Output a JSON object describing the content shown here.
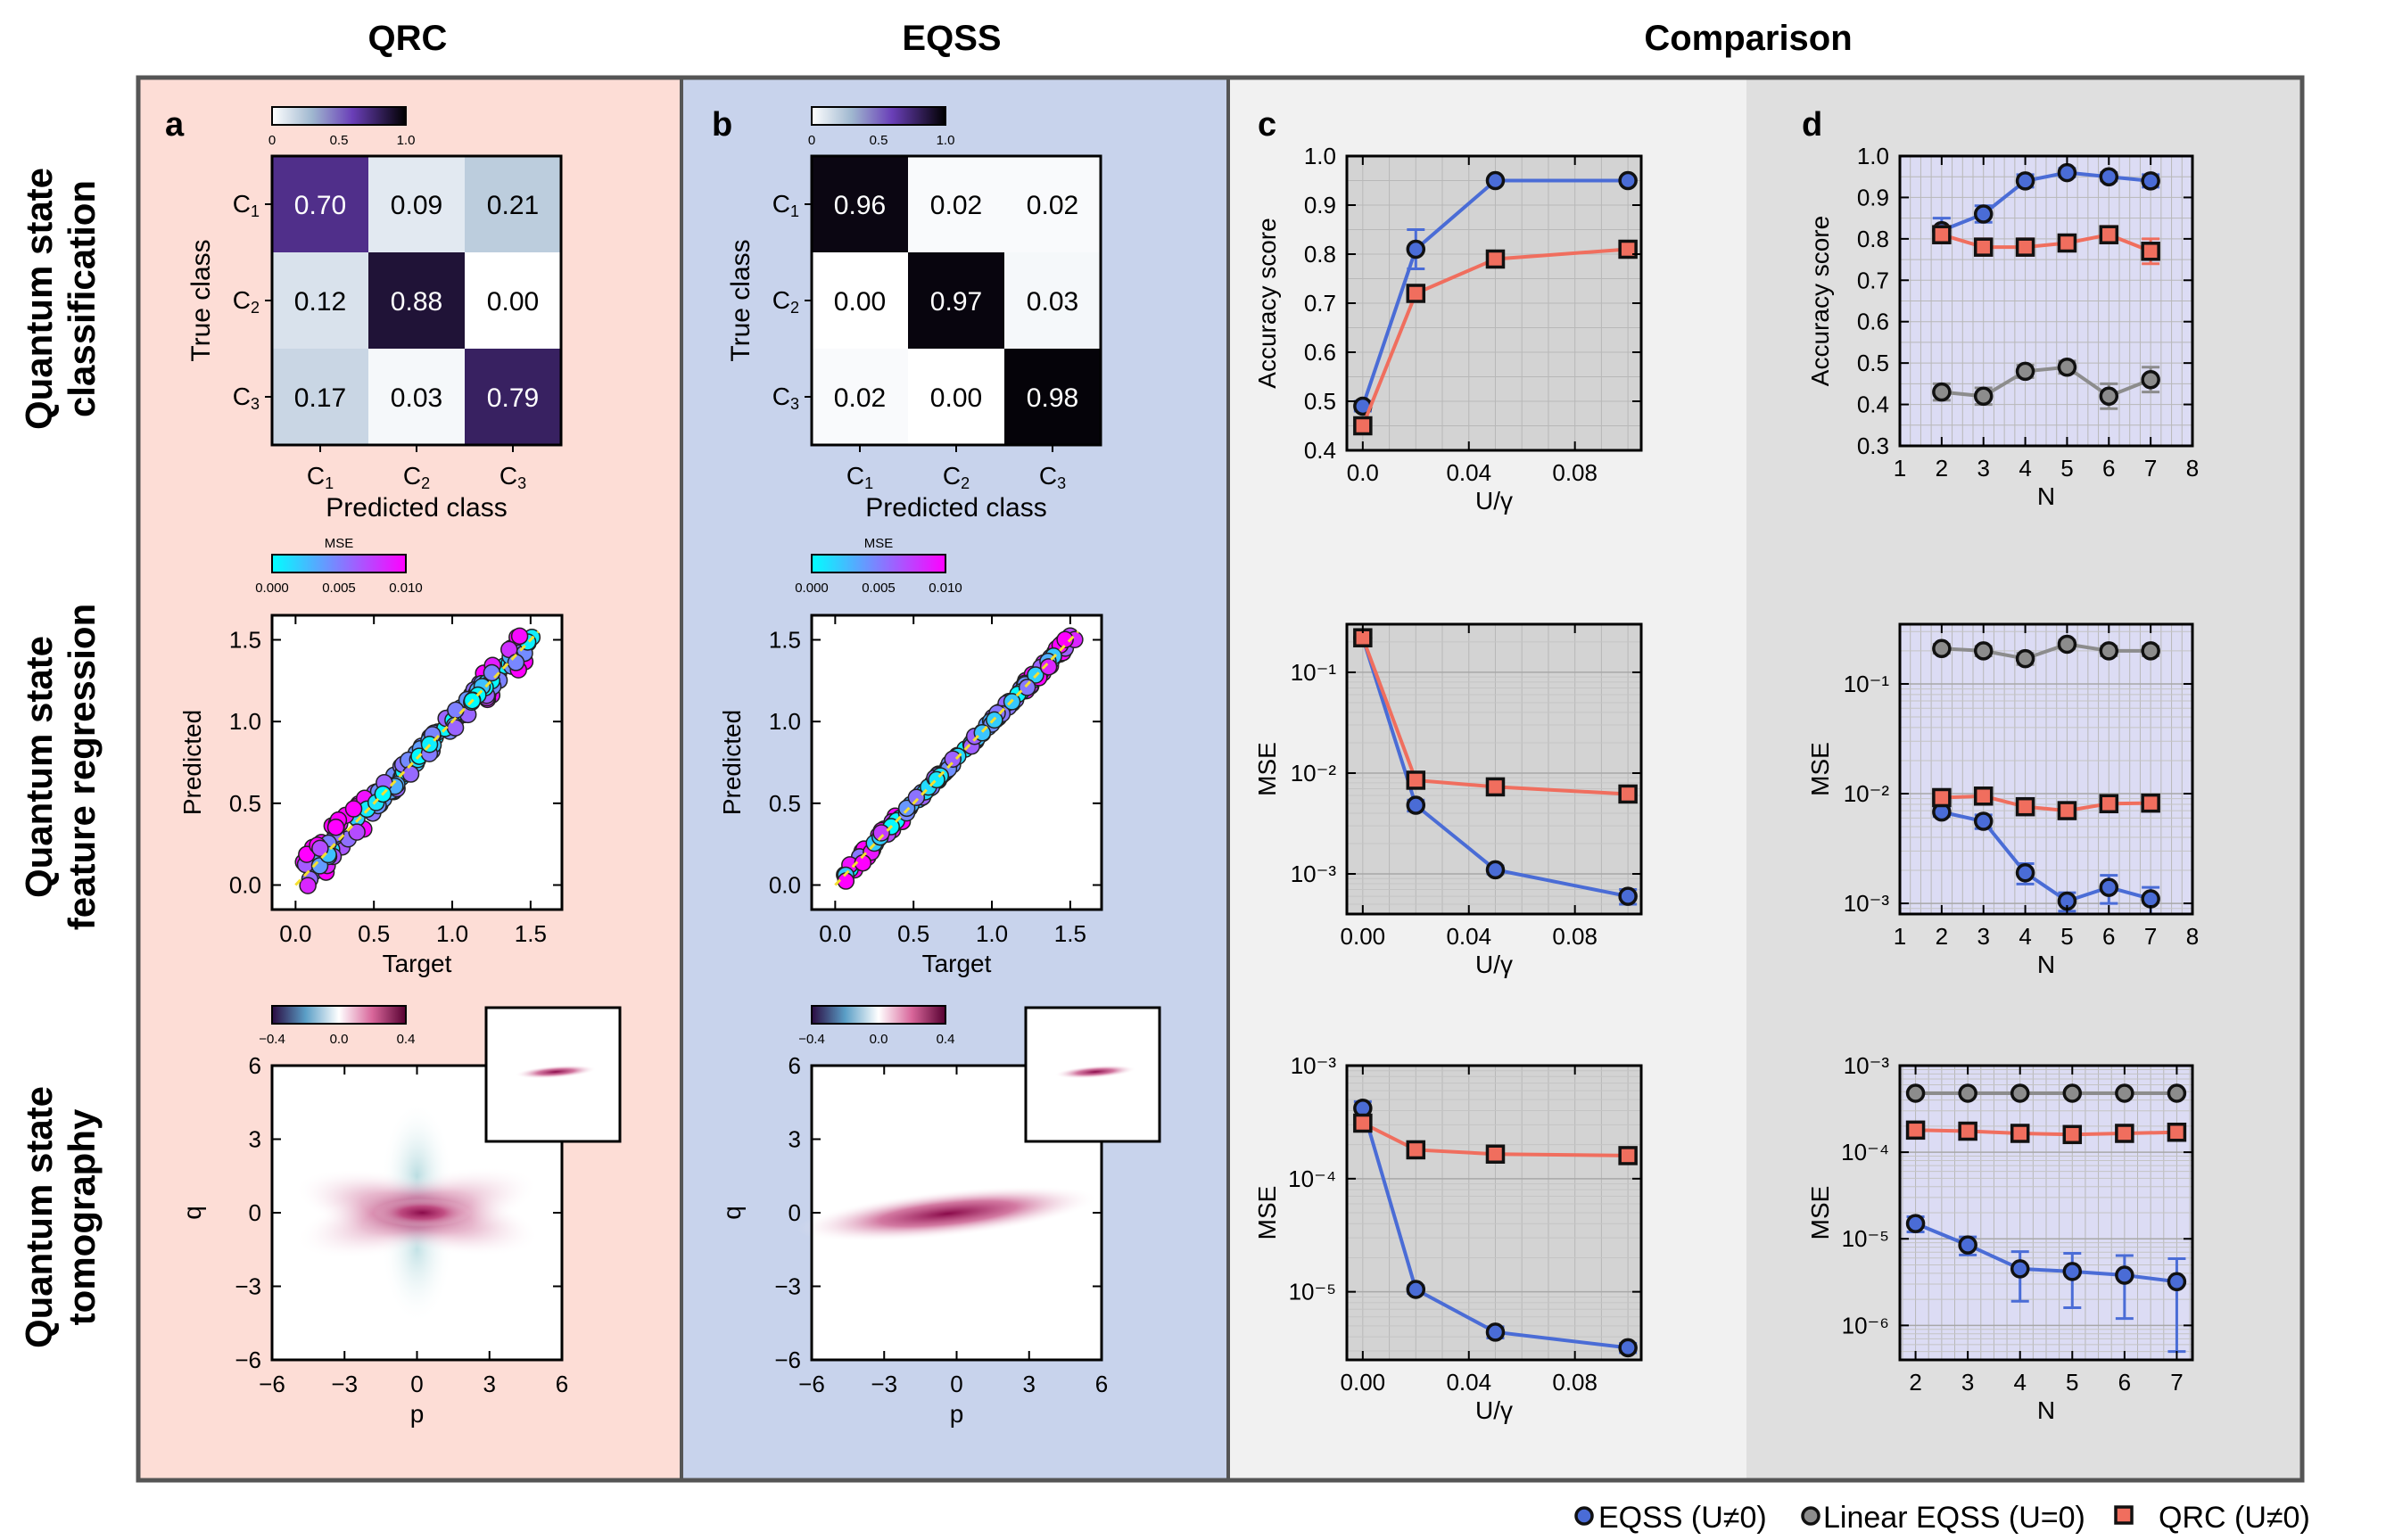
{
  "column_titles": [
    "QRC",
    "EQSS",
    "Comparison"
  ],
  "row_titles": [
    [
      "Quantum state",
      "classification"
    ],
    [
      "Quantum state",
      "feature regression"
    ],
    [
      "Quantum state",
      "tomography"
    ]
  ],
  "panel_letters": [
    "a",
    "b",
    "c",
    "d"
  ],
  "colors": {
    "panel_qrc_bg": "#fdddd6",
    "panel_eqss_bg": "#c8d3ec",
    "panel_c_bg": "#f1f1f1",
    "panel_d_bg": "#dfdfdf",
    "plot_c_bg": "#d3d3d3",
    "plot_d_bg": "#dcdcf4",
    "eqss": "#4a6cd6",
    "linear": "#8c8c8c",
    "qrc": "#f06e5e",
    "frame": "#555555"
  },
  "legend": [
    {
      "label": "EQSS (U≠0)",
      "marker": "circle",
      "color": "#4a6cd6"
    },
    {
      "label": "Linear EQSS (U=0)",
      "marker": "circle",
      "color": "#8c8c8c"
    },
    {
      "label": "QRC (U≠0)",
      "marker": "square",
      "color": "#f06e5e"
    }
  ],
  "chart_data": [
    {
      "id": "cm_qrc",
      "type": "heatmap",
      "title": "",
      "xlabel": "Predicted class",
      "ylabel": "True class",
      "categories": [
        "C1",
        "C2",
        "C3"
      ],
      "values": [
        [
          0.7,
          0.09,
          0.21
        ],
        [
          0.12,
          0.88,
          0.0
        ],
        [
          0.17,
          0.03,
          0.79
        ]
      ],
      "labels": [
        [
          "0.70",
          "0.09",
          "0.21"
        ],
        [
          "0.12",
          "0.88",
          "0.00"
        ],
        [
          "0.17",
          "0.03",
          "0.79"
        ]
      ],
      "colorbar": {
        "range": [
          0,
          1.0
        ],
        "ticks": [
          "0",
          "0.5",
          "1.0"
        ],
        "label": ""
      }
    },
    {
      "id": "cm_eqss",
      "type": "heatmap",
      "title": "",
      "xlabel": "Predicted class",
      "ylabel": "True class",
      "categories": [
        "C1",
        "C2",
        "C3"
      ],
      "values": [
        [
          0.96,
          0.02,
          0.02
        ],
        [
          0.0,
          0.97,
          0.03
        ],
        [
          0.02,
          0.0,
          0.98
        ]
      ],
      "labels": [
        [
          "0.96",
          "0.02",
          "0.02"
        ],
        [
          "0.00",
          "0.97",
          "0.03"
        ],
        [
          "0.02",
          "0.00",
          "0.98"
        ]
      ],
      "colorbar": {
        "range": [
          0,
          1.0
        ],
        "ticks": [
          "0",
          "0.5",
          "1.0"
        ],
        "label": ""
      }
    },
    {
      "id": "reg_qrc",
      "type": "scatter",
      "xlabel": "Target",
      "ylabel": "Predicted",
      "xlim": [
        -0.15,
        1.7
      ],
      "ylim": [
        -0.15,
        1.65
      ],
      "noise": 0.06,
      "xticks": [
        "0.0",
        "0.5",
        "1.0",
        "1.5"
      ],
      "yticks": [
        "0.0",
        "0.5",
        "1.0",
        "1.5"
      ],
      "colorbar": {
        "range": [
          0,
          0.01
        ],
        "ticks": [
          "0.000",
          "0.005",
          "0.010"
        ],
        "label": "MSE"
      }
    },
    {
      "id": "reg_eqss",
      "type": "scatter",
      "xlabel": "Target",
      "ylabel": "Predicted",
      "xlim": [
        -0.15,
        1.7
      ],
      "ylim": [
        -0.15,
        1.65
      ],
      "noise": 0.02,
      "xticks": [
        "0.0",
        "0.5",
        "1.0",
        "1.5"
      ],
      "yticks": [
        "0.0",
        "0.5",
        "1.0",
        "1.5"
      ],
      "colorbar": {
        "range": [
          0,
          0.01
        ],
        "ticks": [
          "0.000",
          "0.005",
          "0.010"
        ],
        "label": "MSE"
      }
    },
    {
      "id": "tomo_qrc",
      "type": "heatmap",
      "xlabel": "p",
      "ylabel": "q",
      "xlim": [
        -6,
        6
      ],
      "ylim": [
        -6,
        6
      ],
      "xticks": [
        "−6",
        "−3",
        "0",
        "3",
        "6"
      ],
      "yticks": [
        "−6",
        "−3",
        "0",
        "3",
        "6"
      ],
      "colorbar": {
        "range": [
          -0.4,
          0.4
        ],
        "ticks": [
          "−0.4",
          "0.0",
          "0.4"
        ],
        "label": ""
      }
    },
    {
      "id": "tomo_eqss",
      "type": "heatmap",
      "xlabel": "p",
      "ylabel": "q",
      "xlim": [
        -6,
        6
      ],
      "ylim": [
        -6,
        6
      ],
      "xticks": [
        "−6",
        "−3",
        "0",
        "3",
        "6"
      ],
      "yticks": [
        "−6",
        "−3",
        "0",
        "3",
        "6"
      ],
      "colorbar": {
        "range": [
          -0.4,
          0.4
        ],
        "ticks": [
          "−0.4",
          "0.0",
          "0.4"
        ],
        "label": ""
      }
    },
    {
      "id": "c1",
      "type": "line",
      "xlabel": "U/γ",
      "ylabel": "Accuracy score",
      "xlim": [
        -0.006,
        0.105
      ],
      "ylim": [
        0.4,
        1.0
      ],
      "yscale": "linear",
      "xticks": [
        0.0,
        0.04,
        0.08
      ],
      "xticklabels": [
        "0.0",
        "0.04",
        "0.08"
      ],
      "yticks": [
        0.4,
        0.5,
        0.6,
        0.7,
        0.8,
        0.9,
        1.0
      ],
      "yticklabels": [
        "0.4",
        "0.5",
        "0.6",
        "0.7",
        "0.8",
        "0.9",
        "1.0"
      ],
      "series": [
        {
          "name": "EQSS (U≠0)",
          "marker": "circle",
          "x": [
            0.0,
            0.02,
            0.05,
            0.1
          ],
          "values": [
            0.49,
            0.81,
            0.95,
            0.95
          ],
          "err": [
            0.01,
            0.04,
            0.005,
            0.005
          ]
        },
        {
          "name": "QRC (U≠0)",
          "marker": "square",
          "x": [
            0.0,
            0.02,
            0.05,
            0.1
          ],
          "values": [
            0.45,
            0.72,
            0.79,
            0.81
          ],
          "err": [
            0.01,
            0.01,
            0.005,
            0.005
          ]
        }
      ]
    },
    {
      "id": "c2",
      "type": "line",
      "xlabel": "U/γ",
      "ylabel": "MSE",
      "xlim": [
        -0.006,
        0.105
      ],
      "ylim": [
        0.0004,
        0.3
      ],
      "yscale": "log",
      "xticks": [
        0.0,
        0.04,
        0.08
      ],
      "xticklabels": [
        "0.00",
        "0.04",
        "0.08"
      ],
      "yticks": [
        0.001,
        0.01,
        0.1
      ],
      "yticklabels": [
        "10⁻³",
        "10⁻²",
        "10⁻¹"
      ],
      "series": [
        {
          "name": "EQSS (U≠0)",
          "marker": "circle",
          "x": [
            0.0,
            0.02,
            0.05,
            0.1
          ],
          "values": [
            0.22,
            0.0048,
            0.0011,
            0.0006
          ],
          "err": [
            0.0,
            0.0006,
            0.0001,
            0.0001
          ]
        },
        {
          "name": "QRC (U≠0)",
          "marker": "square",
          "x": [
            0.0,
            0.02,
            0.05,
            0.1
          ],
          "values": [
            0.22,
            0.0085,
            0.0073,
            0.0062
          ],
          "err": [
            0.0,
            0.0005,
            0.0003,
            0.0003
          ]
        }
      ]
    },
    {
      "id": "c3",
      "type": "line",
      "xlabel": "U/γ",
      "ylabel": "MSE",
      "xlim": [
        -0.006,
        0.105
      ],
      "ylim": [
        2.5e-06,
        0.001
      ],
      "yscale": "log",
      "xticks": [
        0.0,
        0.04,
        0.08
      ],
      "xticklabels": [
        "0.00",
        "0.04",
        "0.08"
      ],
      "yticks": [
        1e-05,
        0.0001,
        0.001
      ],
      "yticklabels": [
        "10⁻⁵",
        "10⁻⁴",
        "10⁻³"
      ],
      "series": [
        {
          "name": "EQSS (U≠0)",
          "marker": "circle",
          "x": [
            0.0,
            0.02,
            0.05,
            0.1
          ],
          "values": [
            0.00042,
            1.05e-05,
            4.4e-06,
            3.2e-06
          ],
          "err": [
            6e-05,
            8e-07,
            5e-07,
            3e-07
          ]
        },
        {
          "name": "QRC (U≠0)",
          "marker": "square",
          "x": [
            0.0,
            0.02,
            0.05,
            0.1
          ],
          "values": [
            0.00031,
            0.00018,
            0.000165,
            0.00016
          ],
          "err": [
            3e-05,
            1e-05,
            1e-05,
            1e-05
          ]
        }
      ]
    },
    {
      "id": "d1",
      "type": "line",
      "xlabel": "N",
      "ylabel": "Accuracy score",
      "xlim": [
        1,
        8
      ],
      "ylim": [
        0.3,
        1.0
      ],
      "yscale": "linear",
      "xticks": [
        1,
        2,
        3,
        4,
        5,
        6,
        7,
        8
      ],
      "xticklabels": [
        "1",
        "2",
        "3",
        "4",
        "5",
        "6",
        "7",
        "8"
      ],
      "yticks": [
        0.3,
        0.4,
        0.5,
        0.6,
        0.7,
        0.8,
        0.9,
        1.0
      ],
      "yticklabels": [
        "0.3",
        "0.4",
        "0.5",
        "0.6",
        "0.7",
        "0.8",
        "0.9",
        "1.0"
      ],
      "series": [
        {
          "name": "EQSS (U≠0)",
          "marker": "circle",
          "x": [
            2,
            3,
            4,
            5,
            6,
            7
          ],
          "values": [
            0.82,
            0.86,
            0.94,
            0.96,
            0.95,
            0.94
          ],
          "err": [
            0.03,
            0.02,
            0.015,
            0.01,
            0.01,
            0.015
          ]
        },
        {
          "name": "Linear EQSS (U=0)",
          "marker": "circle",
          "x": [
            2,
            3,
            4,
            5,
            6,
            7
          ],
          "values": [
            0.43,
            0.42,
            0.48,
            0.49,
            0.42,
            0.46
          ],
          "err": [
            0.02,
            0.02,
            0.015,
            0.015,
            0.03,
            0.03
          ]
        },
        {
          "name": "QRC (U≠0)",
          "marker": "square",
          "x": [
            2,
            3,
            4,
            5,
            6,
            7
          ],
          "values": [
            0.81,
            0.78,
            0.78,
            0.79,
            0.81,
            0.77
          ],
          "err": [
            0.02,
            0.02,
            0.02,
            0.015,
            0.02,
            0.03
          ]
        }
      ]
    },
    {
      "id": "d2",
      "type": "line",
      "xlabel": "N",
      "ylabel": "MSE",
      "xlim": [
        1,
        8
      ],
      "ylim": [
        0.0008,
        0.35
      ],
      "yscale": "log",
      "xticks": [
        1,
        2,
        3,
        4,
        5,
        6,
        7,
        8
      ],
      "xticklabels": [
        "1",
        "2",
        "3",
        "4",
        "5",
        "6",
        "7",
        "8"
      ],
      "yticks": [
        0.001,
        0.01,
        0.1
      ],
      "yticklabels": [
        "10⁻³",
        "10⁻²",
        "10⁻¹"
      ],
      "series": [
        {
          "name": "EQSS (U≠0)",
          "marker": "circle",
          "x": [
            2,
            3,
            4,
            5,
            6,
            7
          ],
          "values": [
            0.0068,
            0.0056,
            0.0019,
            0.00105,
            0.0014,
            0.0011
          ],
          "err": [
            0.0006,
            0.0008,
            0.0004,
            0.0002,
            0.0004,
            0.0003
          ]
        },
        {
          "name": "Linear EQSS (U=0)",
          "marker": "circle",
          "x": [
            2,
            3,
            4,
            5,
            6,
            7
          ],
          "values": [
            0.21,
            0.2,
            0.17,
            0.23,
            0.2,
            0.2
          ],
          "err": [
            0.02,
            0.02,
            0.02,
            0.02,
            0.02,
            0.02
          ]
        },
        {
          "name": "QRC (U≠0)",
          "marker": "square",
          "x": [
            2,
            3,
            4,
            5,
            6,
            7
          ],
          "values": [
            0.0092,
            0.0095,
            0.0076,
            0.007,
            0.0081,
            0.0082
          ],
          "err": [
            0.001,
            0.001,
            0.0008,
            0.0008,
            0.0008,
            0.0008
          ]
        }
      ]
    },
    {
      "id": "d3",
      "type": "line",
      "xlabel": "N",
      "ylabel": "MSE",
      "xlim": [
        1.7,
        7.3
      ],
      "ylim": [
        4e-07,
        0.001
      ],
      "yscale": "log",
      "xticks": [
        2,
        3,
        4,
        5,
        6,
        7
      ],
      "xticklabels": [
        "2",
        "3",
        "4",
        "5",
        "6",
        "7"
      ],
      "yticks": [
        1e-06,
        1e-05,
        0.0001,
        0.001
      ],
      "yticklabels": [
        "10⁻⁶",
        "10⁻⁵",
        "10⁻⁴",
        "10⁻³"
      ],
      "series": [
        {
          "name": "EQSS (U≠0)",
          "marker": "circle",
          "x": [
            2,
            3,
            4,
            5,
            6,
            7
          ],
          "values": [
            1.5e-05,
            8.5e-06,
            4.5e-06,
            4.2e-06,
            3.8e-06,
            3.2e-06
          ],
          "err": [
            3e-06,
            2e-06,
            2.6e-06,
            2.6e-06,
            2.6e-06,
            2.7e-06
          ]
        },
        {
          "name": "Linear EQSS (U=0)",
          "marker": "circle",
          "x": [
            2,
            3,
            4,
            5,
            6,
            7
          ],
          "values": [
            0.00048,
            0.00048,
            0.00048,
            0.00048,
            0.00048,
            0.00048
          ],
          "err": [
            2e-05,
            2e-05,
            2e-05,
            2e-05,
            2e-05,
            2e-05
          ]
        },
        {
          "name": "QRC (U≠0)",
          "marker": "square",
          "x": [
            2,
            3,
            4,
            5,
            6,
            7
          ],
          "values": [
            0.00018,
            0.000175,
            0.000165,
            0.00016,
            0.000165,
            0.00017
          ],
          "err": [
            2e-05,
            2e-05,
            2e-05,
            2e-05,
            2e-05,
            2e-05
          ]
        }
      ]
    }
  ]
}
